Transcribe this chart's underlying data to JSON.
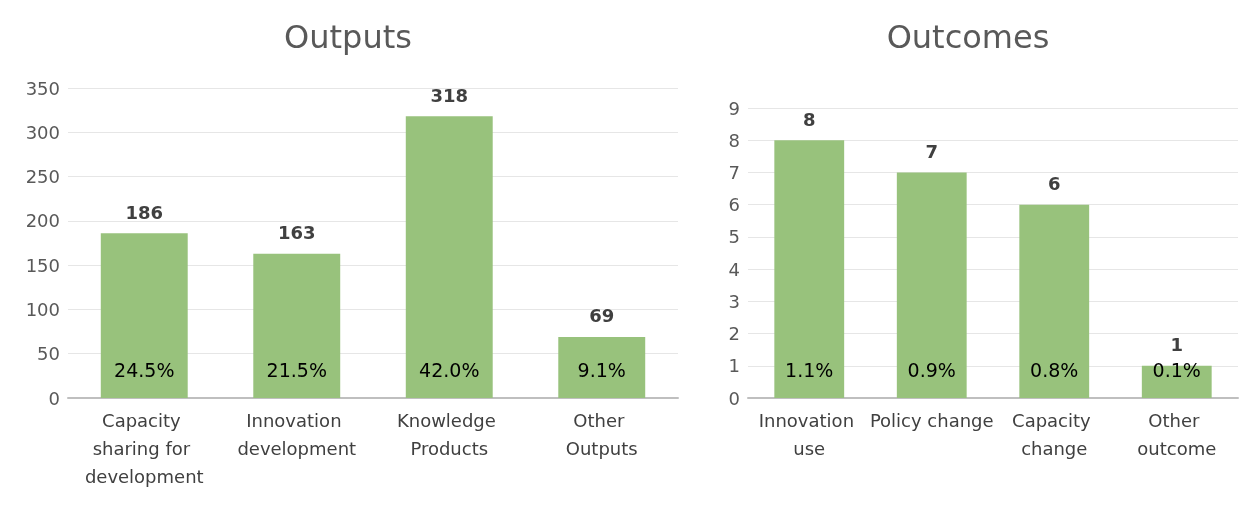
{
  "chart_data": [
    {
      "type": "bar",
      "title": "Outputs",
      "categories": [
        "Capacity sharing for development",
        "Innovation development",
        "Knowledge Products",
        "Other Outputs"
      ],
      "values": [
        186,
        163,
        318,
        69
      ],
      "color": "#98c27c",
      "ylim": [
        0,
        350
      ],
      "yticks": [
        0,
        50,
        100,
        150,
        200,
        250,
        300,
        350
      ],
      "grid": "y",
      "data_labels": true,
      "annotations": [
        "24.5%",
        "21.5%",
        "42.0%",
        "9.1%"
      ]
    },
    {
      "type": "bar",
      "title": "Outcomes",
      "categories": [
        "Innovation use",
        "Policy change",
        "Capacity change",
        "Other outcome"
      ],
      "values": [
        8,
        7,
        6,
        1
      ],
      "color": "#98c27c",
      "ylim": [
        0,
        9
      ],
      "yticks": [
        0,
        1,
        2,
        3,
        4,
        5,
        6,
        7,
        8,
        9
      ],
      "grid": "y",
      "data_labels": true,
      "annotations": [
        "1.1%",
        "0.9%",
        "0.8%",
        "0.1%"
      ]
    }
  ]
}
